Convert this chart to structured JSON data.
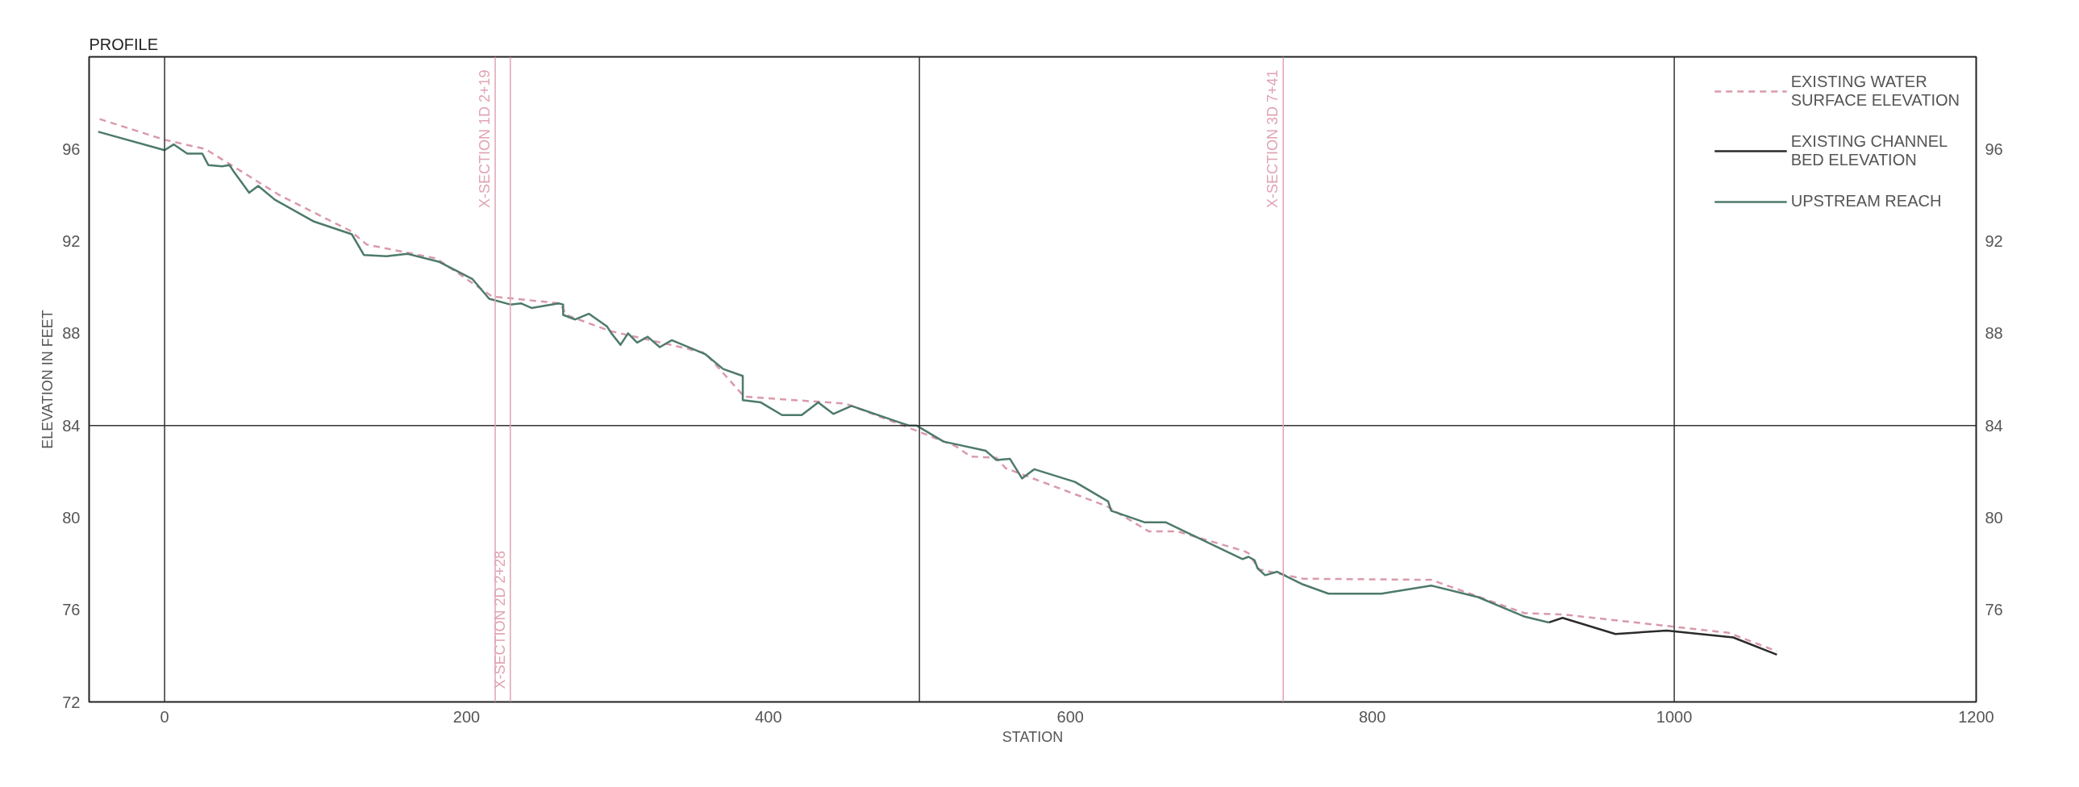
{
  "chart_data": {
    "type": "line",
    "title": "PROFILE",
    "xlabel": "STATION",
    "ylabel": "ELEVATION IN FEET",
    "xlim": [
      -50,
      1200
    ],
    "xticks": [
      0,
      200,
      400,
      600,
      800,
      1000,
      1200
    ],
    "ylim": [
      72,
      100
    ],
    "yticks": [
      72,
      76,
      80,
      84,
      88,
      92,
      96
    ],
    "y2lim": [
      72,
      100
    ],
    "y2ticks": [
      76,
      80,
      84,
      88,
      92,
      96
    ],
    "grid": false,
    "legend": "top right",
    "ref_lines": [
      {
        "axis": "x",
        "value": 0,
        "color": "#333333"
      },
      {
        "axis": "x",
        "value": 500,
        "color": "#333333"
      },
      {
        "axis": "x",
        "value": 1000,
        "color": "#333333"
      },
      {
        "axis": "y",
        "value": 84,
        "color": "#333333"
      },
      {
        "axis": "x",
        "value": 219,
        "label": "X-SECTION 1D 2+19",
        "color": "#e0a3b4"
      },
      {
        "axis": "x",
        "value": 229,
        "label": "X-SECTION 2D 2+28",
        "color": "#e0a3b4"
      },
      {
        "axis": "x",
        "value": 741,
        "label": "X-SECTION 3D 7+41",
        "color": "#e0a3b4"
      }
    ],
    "series": [
      {
        "name": "EXISTING WATER SURFACE ELEVATION",
        "color": "#d99aaa",
        "line_style": "dashed",
        "x": [
          -43,
          0,
          27,
          43,
          76,
          123,
          134,
          180,
          217,
          262,
          266,
          295,
          332,
          358,
          384,
          451,
          497,
          524,
          534,
          551,
          557,
          624,
          652,
          671,
          715,
          718,
          725,
          754,
          839,
          901,
          926,
          1036,
          1068
        ],
        "values": [
          97.3,
          96.4,
          96.0,
          95.35,
          94.0,
          92.45,
          91.85,
          91.25,
          89.6,
          89.3,
          88.8,
          88.1,
          87.55,
          87.15,
          85.25,
          84.95,
          83.8,
          83.1,
          82.65,
          82.6,
          82.15,
          80.5,
          79.4,
          79.4,
          78.55,
          78.45,
          77.75,
          77.35,
          77.3,
          75.85,
          75.8,
          75.0,
          74.2
        ]
      },
      {
        "name": "EXISTING CHANNEL BED ELEVATION",
        "color": "#2b2b2b",
        "line_style": "solid",
        "x": [
          917,
          926,
          961,
          995,
          1039,
          1068
        ],
        "values": [
          75.45,
          75.65,
          74.95,
          75.1,
          74.8,
          74.05
        ]
      },
      {
        "name": "UPSTREAM REACH",
        "color": "#4d7a6b",
        "line_style": "solid",
        "x": [
          -44,
          0,
          6,
          15,
          25,
          29,
          38,
          43,
          46,
          56,
          62,
          73,
          99,
          124,
          132,
          147,
          161,
          182,
          204,
          215,
          229,
          236,
          243,
          261,
          264,
          264,
          272,
          281,
          293,
          296,
          302,
          307,
          313,
          320,
          328,
          336,
          358,
          370,
          383,
          383,
          395,
          409,
          422,
          433,
          443,
          455,
          486,
          493,
          498,
          516,
          544,
          551,
          560,
          568,
          576,
          603,
          625,
          627,
          649,
          663,
          714,
          718,
          722,
          724,
          729,
          737,
          754,
          771,
          806,
          839,
          870,
          901,
          917
        ],
        "values": [
          96.75,
          95.95,
          96.2,
          95.8,
          95.8,
          95.3,
          95.25,
          95.3,
          95.0,
          94.1,
          94.4,
          93.8,
          92.85,
          92.3,
          91.4,
          91.35,
          91.45,
          91.1,
          90.35,
          89.5,
          89.25,
          89.3,
          89.1,
          89.3,
          89.25,
          88.8,
          88.6,
          88.85,
          88.3,
          88.0,
          87.5,
          88.0,
          87.6,
          87.85,
          87.4,
          87.7,
          87.1,
          86.45,
          86.15,
          85.1,
          85.0,
          84.45,
          84.45,
          85.0,
          84.5,
          84.85,
          84.15,
          84.0,
          84.0,
          83.3,
          82.9,
          82.5,
          82.55,
          81.7,
          82.1,
          81.55,
          80.7,
          80.3,
          79.8,
          79.8,
          78.2,
          78.3,
          78.15,
          77.8,
          77.5,
          77.65,
          77.1,
          76.7,
          76.7,
          77.05,
          76.55,
          75.7,
          75.45
        ]
      }
    ]
  }
}
